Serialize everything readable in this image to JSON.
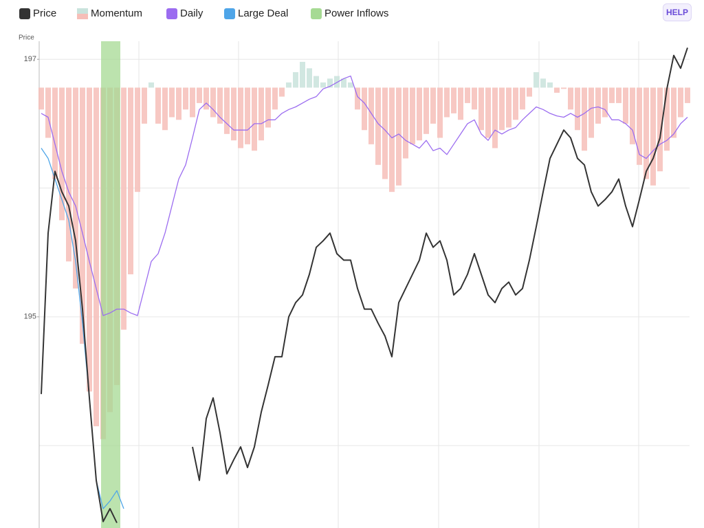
{
  "button": "HELP",
  "chart_data": {
    "type": "line",
    "y_label": "Price",
    "xlim": [
      -0.3,
      94.3
    ],
    "ylim": [
      193.36,
      197.14
    ],
    "yticks": [
      195,
      197
    ],
    "ygrid": [
      194,
      195,
      196,
      197
    ],
    "xgrid": [
      -0.3,
      14.2,
      28.7,
      43.2,
      57.8,
      72.4,
      86.9
    ],
    "x": [
      0,
      1,
      2,
      3,
      4,
      5,
      6,
      7,
      8,
      9,
      10,
      11,
      12,
      13,
      14,
      15,
      16,
      17,
      18,
      19,
      20,
      21,
      22,
      23,
      24,
      25,
      26,
      27,
      28,
      29,
      30,
      31,
      32,
      33,
      34,
      35,
      36,
      37,
      38,
      39,
      40,
      41,
      42,
      43,
      44,
      45,
      46,
      47,
      48,
      49,
      50,
      51,
      52,
      53,
      54,
      55,
      56,
      57,
      58,
      59,
      60,
      61,
      62,
      63,
      64,
      65,
      66,
      67,
      68,
      69,
      70,
      71,
      72,
      73,
      74,
      75,
      76,
      77,
      78,
      79,
      80,
      81,
      82,
      83,
      84,
      85,
      86,
      87,
      88,
      89,
      90,
      91,
      92,
      93,
      94
    ],
    "series": [
      {
        "name": "Price",
        "color": "#333333",
        "values": [
          194.4,
          195.65,
          196.13,
          195.97,
          195.86,
          195.59,
          195.06,
          194.37,
          193.73,
          193.41,
          193.51,
          193.4,
          null,
          null,
          null,
          null,
          null,
          null,
          null,
          null,
          null,
          null,
          193.99,
          193.73,
          194.21,
          194.37,
          194.1,
          193.78,
          193.89,
          193.99,
          193.83,
          193.99,
          194.26,
          194.47,
          194.69,
          194.69,
          195.0,
          195.11,
          195.17,
          195.33,
          195.54,
          195.59,
          195.65,
          195.49,
          195.44,
          195.44,
          195.22,
          195.06,
          195.06,
          194.95,
          194.85,
          194.69,
          195.11,
          195.22,
          195.33,
          195.44,
          195.65,
          195.54,
          195.59,
          195.44,
          195.17,
          195.22,
          195.33,
          195.49,
          195.33,
          195.17,
          195.11,
          195.22,
          195.27,
          195.17,
          195.22,
          195.44,
          195.7,
          195.97,
          196.23,
          196.34,
          196.45,
          196.39,
          196.23,
          196.18,
          195.97,
          195.86,
          195.91,
          195.97,
          196.07,
          195.86,
          195.7,
          195.91,
          196.13,
          196.23,
          196.39,
          196.77,
          197.03,
          196.93,
          197.09
        ]
      },
      {
        "name": "Momentum",
        "type": "bar",
        "color": "#f6beb8",
        "color_up": "#c9e3dc",
        "base": 196.78,
        "values": [
          196.61,
          196.39,
          196.07,
          195.75,
          195.43,
          195.22,
          194.79,
          194.42,
          194.15,
          194.05,
          194.26,
          194.47,
          194.9,
          195.33,
          195.97,
          196.5,
          196.82,
          196.5,
          196.45,
          196.55,
          196.53,
          196.61,
          196.55,
          196.66,
          196.61,
          196.55,
          196.5,
          196.42,
          196.37,
          196.31,
          196.34,
          196.29,
          196.37,
          196.47,
          196.61,
          196.71,
          196.82,
          196.9,
          196.98,
          196.93,
          196.87,
          196.82,
          196.85,
          196.87,
          196.85,
          196.82,
          196.61,
          196.45,
          196.34,
          196.18,
          196.07,
          195.97,
          196.02,
          196.23,
          196.34,
          196.37,
          196.42,
          196.5,
          196.39,
          196.55,
          196.58,
          196.53,
          196.66,
          196.61,
          196.45,
          196.39,
          196.31,
          196.45,
          196.47,
          196.53,
          196.61,
          196.71,
          196.9,
          196.85,
          196.82,
          196.74,
          196.77,
          196.61,
          196.45,
          196.29,
          196.39,
          196.5,
          196.55,
          196.66,
          196.66,
          196.5,
          196.34,
          196.18,
          196.07,
          196.02,
          196.13,
          196.29,
          196.39,
          196.55,
          196.66
        ]
      },
      {
        "name": "Daily",
        "color": "#9b6cf0",
        "values": [
          196.58,
          196.55,
          196.34,
          196.13,
          195.97,
          195.86,
          195.65,
          195.43,
          195.22,
          195.01,
          195.03,
          195.06,
          195.06,
          195.03,
          195.01,
          195.22,
          195.43,
          195.49,
          195.65,
          195.86,
          196.07,
          196.18,
          196.39,
          196.61,
          196.66,
          196.61,
          196.55,
          196.5,
          196.45,
          196.45,
          196.45,
          196.5,
          196.5,
          196.53,
          196.53,
          196.58,
          196.61,
          196.63,
          196.66,
          196.69,
          196.71,
          196.77,
          196.79,
          196.82,
          196.85,
          196.87,
          196.71,
          196.66,
          196.58,
          196.5,
          196.45,
          196.39,
          196.42,
          196.37,
          196.34,
          196.31,
          196.37,
          196.29,
          196.31,
          196.26,
          196.34,
          196.42,
          196.5,
          196.53,
          196.42,
          196.37,
          196.45,
          196.42,
          196.45,
          196.47,
          196.53,
          196.58,
          196.63,
          196.61,
          196.58,
          196.56,
          196.55,
          196.58,
          196.55,
          196.58,
          196.62,
          196.63,
          196.61,
          196.53,
          196.53,
          196.5,
          196.45,
          196.26,
          196.23,
          196.29,
          196.34,
          196.37,
          196.42,
          196.5,
          196.55
        ]
      },
      {
        "name": "Large Deal",
        "color": "#4ea5e8",
        "values": [
          196.31,
          196.23,
          196.07,
          195.91,
          195.75,
          195.43,
          194.95,
          194.37,
          193.73,
          193.51,
          193.57,
          193.65,
          193.51,
          null,
          null,
          null,
          null,
          null,
          null,
          null,
          null,
          null,
          null,
          null,
          null,
          null,
          null,
          null,
          null,
          null,
          null,
          null,
          null,
          null,
          null,
          null,
          null,
          null,
          null,
          null,
          null,
          null,
          null,
          null,
          null,
          null,
          null,
          null,
          null,
          null,
          null,
          null,
          null,
          null,
          null,
          null,
          null,
          null,
          null,
          null,
          null,
          null,
          null,
          null,
          null,
          null,
          null,
          null,
          null,
          null,
          null,
          null,
          null,
          null,
          null,
          null,
          null,
          null,
          null,
          null,
          null,
          null,
          null,
          null,
          null,
          null,
          null,
          null,
          null,
          null,
          null,
          null,
          null,
          null,
          null
        ]
      }
    ],
    "bands": [
      {
        "name": "Power Inflows",
        "color": "#a6da93",
        "range": [
          8.7,
          11.5
        ]
      }
    ]
  }
}
